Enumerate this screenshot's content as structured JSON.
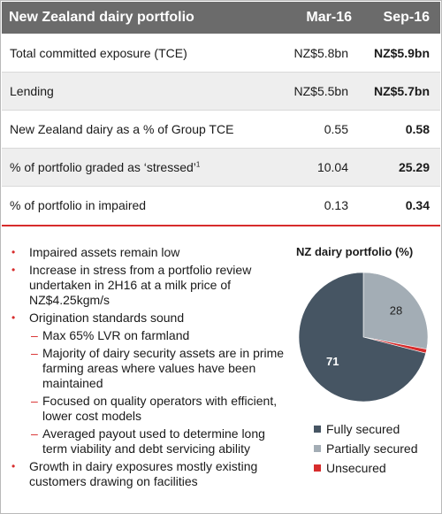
{
  "table": {
    "title": "New Zealand dairy portfolio",
    "col1": "Mar-16",
    "col2": "Sep-16",
    "rows": [
      {
        "label": "Total committed exposure (TCE)",
        "v1": "NZ$5.8bn",
        "v2": "NZ$5.9bn"
      },
      {
        "label": "Lending",
        "v1": "NZ$5.5bn",
        "v2": "NZ$5.7bn"
      },
      {
        "label": "New Zealand dairy as a % of Group TCE",
        "v1": "0.55",
        "v2": "0.58"
      },
      {
        "label": "% of portfolio graded as ‘stressed’",
        "sup": "1",
        "v1": "10.04",
        "v2": "25.29"
      },
      {
        "label": "% of portfolio in impaired",
        "v1": "0.13",
        "v2": "0.34"
      }
    ]
  },
  "bullets": [
    {
      "level": 1,
      "text": "Impaired assets remain low"
    },
    {
      "level": 1,
      "text": "Increase in stress from a portfolio review undertaken in 2H16 at a milk price of NZ$4.25kgm/s"
    },
    {
      "level": 1,
      "text": "Origination standards sound"
    },
    {
      "level": 2,
      "text": "Max 65% LVR on farmland"
    },
    {
      "level": 2,
      "text": "Majority of dairy security assets are in prime farming areas where values have been maintained"
    },
    {
      "level": 2,
      "text": "Focused on quality operators with efficient, lower cost models"
    },
    {
      "level": 2,
      "text": "Averaged payout used to determine long term viability and debt servicing ability"
    },
    {
      "level": 1,
      "text": "Growth in dairy exposures mostly existing customers drawing on facilities"
    }
  ],
  "chart_data": {
    "type": "pie",
    "title": "NZ dairy portfolio (%)",
    "categories": [
      "Fully secured",
      "Partially secured",
      "Unsecured"
    ],
    "values": [
      71,
      28,
      1
    ],
    "colors": [
      "#465563",
      "#a3adb5",
      "#d72c2c"
    ],
    "legend": "bottom"
  }
}
